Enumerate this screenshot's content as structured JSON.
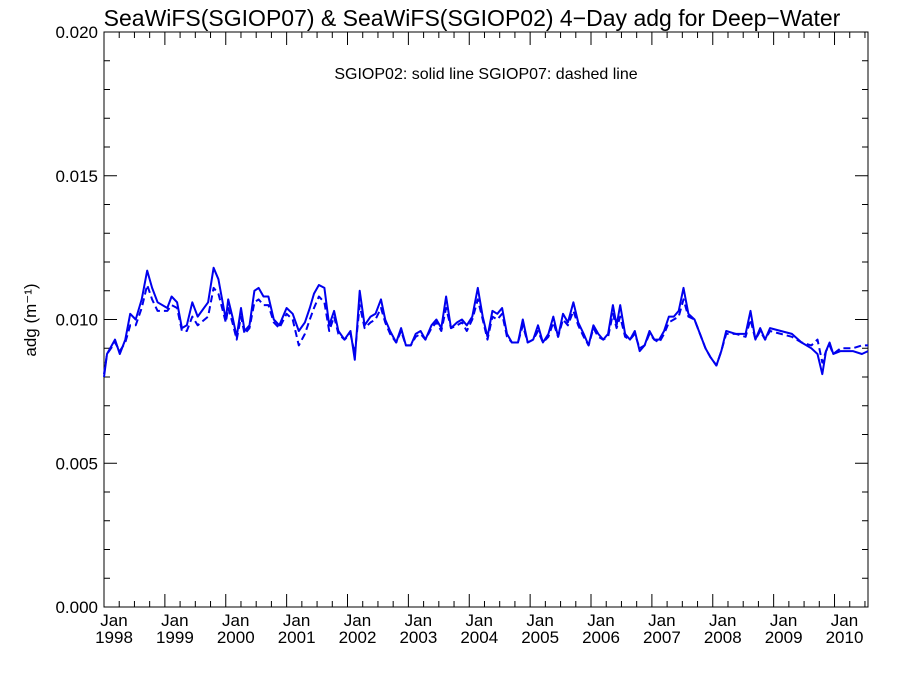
{
  "chart_data": {
    "type": "line",
    "title": "SeaWiFS(SGIOP07) & SeaWiFS(SGIOP02) 4−Day adg for Deep−Water",
    "annotation": "SGIOP02: solid line   SGIOP07: dashed line",
    "ylabel": "adg (m⁻¹)",
    "xlabel": "",
    "xlim": [
      1998.0,
      2010.55
    ],
    "ylim": [
      0.0,
      0.02
    ],
    "yticks": [
      0.0,
      0.005,
      0.01,
      0.015,
      0.02
    ],
    "ytick_labels": [
      "0.000",
      "0.005",
      "0.010",
      "0.015",
      "0.020"
    ],
    "xticks": [
      1998,
      1999,
      2000,
      2001,
      2002,
      2003,
      2004,
      2005,
      2006,
      2007,
      2008,
      2009,
      2010
    ],
    "xtick_month": "Jan",
    "xtick_years": [
      "1998",
      "1999",
      "2000",
      "2001",
      "2002",
      "2003",
      "2004",
      "2005",
      "2006",
      "2007",
      "2008",
      "2009",
      "2010"
    ],
    "grid": false,
    "line_color": "#0000ee",
    "series": [
      {
        "name": "SGIOP02",
        "style": "solid",
        "points": [
          [
            1998.0,
            0.008
          ],
          [
            1998.05,
            0.0088
          ],
          [
            1998.18,
            0.0093
          ],
          [
            1998.26,
            0.0088
          ],
          [
            1998.35,
            0.0093
          ],
          [
            1998.43,
            0.0102
          ],
          [
            1998.52,
            0.01
          ],
          [
            1998.62,
            0.0107
          ],
          [
            1998.71,
            0.0117
          ],
          [
            1998.79,
            0.0111
          ],
          [
            1998.88,
            0.0106
          ],
          [
            1999.04,
            0.0104
          ],
          [
            1999.11,
            0.0108
          ],
          [
            1999.2,
            0.0106
          ],
          [
            1999.28,
            0.0097
          ],
          [
            1999.36,
            0.0098
          ],
          [
            1999.45,
            0.0106
          ],
          [
            1999.54,
            0.0101
          ],
          [
            1999.71,
            0.0106
          ],
          [
            1999.8,
            0.0118
          ],
          [
            1999.88,
            0.0114
          ],
          [
            2000.0,
            0.01
          ],
          [
            2000.04,
            0.0107
          ],
          [
            2000.11,
            0.0101
          ],
          [
            2000.18,
            0.0094
          ],
          [
            2000.25,
            0.0104
          ],
          [
            2000.31,
            0.0096
          ],
          [
            2000.39,
            0.0098
          ],
          [
            2000.47,
            0.011
          ],
          [
            2000.54,
            0.0111
          ],
          [
            2000.62,
            0.0108
          ],
          [
            2000.7,
            0.0108
          ],
          [
            2000.79,
            0.01
          ],
          [
            2000.88,
            0.0098
          ],
          [
            2001.0,
            0.0104
          ],
          [
            2001.1,
            0.0102
          ],
          [
            2001.2,
            0.0096
          ],
          [
            2001.3,
            0.0099
          ],
          [
            2001.38,
            0.0104
          ],
          [
            2001.45,
            0.0109
          ],
          [
            2001.53,
            0.0112
          ],
          [
            2001.62,
            0.0111
          ],
          [
            2001.7,
            0.0098
          ],
          [
            2001.78,
            0.0103
          ],
          [
            2001.85,
            0.0096
          ],
          [
            2001.95,
            0.0093
          ],
          [
            2002.05,
            0.0096
          ],
          [
            2002.12,
            0.0086
          ],
          [
            2002.2,
            0.011
          ],
          [
            2002.28,
            0.0098
          ],
          [
            2002.38,
            0.0101
          ],
          [
            2002.46,
            0.0102
          ],
          [
            2002.55,
            0.0107
          ],
          [
            2002.62,
            0.01
          ],
          [
            2002.7,
            0.0096
          ],
          [
            2002.8,
            0.0092
          ],
          [
            2002.88,
            0.0097
          ],
          [
            2002.96,
            0.0091
          ],
          [
            2003.04,
            0.0091
          ],
          [
            2003.12,
            0.0095
          ],
          [
            2003.2,
            0.0096
          ],
          [
            2003.28,
            0.0093
          ],
          [
            2003.38,
            0.0098
          ],
          [
            2003.46,
            0.01
          ],
          [
            2003.54,
            0.0097
          ],
          [
            2003.62,
            0.0108
          ],
          [
            2003.7,
            0.0097
          ],
          [
            2003.8,
            0.0099
          ],
          [
            2003.88,
            0.01
          ],
          [
            2003.96,
            0.0098
          ],
          [
            2004.05,
            0.0101
          ],
          [
            2004.14,
            0.0111
          ],
          [
            2004.22,
            0.0101
          ],
          [
            2004.3,
            0.0094
          ],
          [
            2004.38,
            0.0103
          ],
          [
            2004.46,
            0.0102
          ],
          [
            2004.54,
            0.0104
          ],
          [
            2004.62,
            0.0095
          ],
          [
            2004.7,
            0.0092
          ],
          [
            2004.8,
            0.0092
          ],
          [
            2004.88,
            0.01
          ],
          [
            2004.96,
            0.0092
          ],
          [
            2005.05,
            0.0093
          ],
          [
            2005.13,
            0.0098
          ],
          [
            2005.21,
            0.0092
          ],
          [
            2005.3,
            0.0095
          ],
          [
            2005.38,
            0.0101
          ],
          [
            2005.46,
            0.0094
          ],
          [
            2005.54,
            0.0102
          ],
          [
            2005.62,
            0.0099
          ],
          [
            2005.71,
            0.0106
          ],
          [
            2005.79,
            0.0099
          ],
          [
            2005.88,
            0.0095
          ],
          [
            2005.96,
            0.0091
          ],
          [
            2006.04,
            0.0098
          ],
          [
            2006.12,
            0.0095
          ],
          [
            2006.2,
            0.0093
          ],
          [
            2006.28,
            0.0095
          ],
          [
            2006.36,
            0.0105
          ],
          [
            2006.42,
            0.0098
          ],
          [
            2006.48,
            0.0105
          ],
          [
            2006.56,
            0.0095
          ],
          [
            2006.64,
            0.0093
          ],
          [
            2006.72,
            0.0096
          ],
          [
            2006.8,
            0.0089
          ],
          [
            2006.88,
            0.0091
          ],
          [
            2006.96,
            0.0096
          ],
          [
            2007.04,
            0.0093
          ],
          [
            2007.12,
            0.0093
          ],
          [
            2007.2,
            0.0096
          ],
          [
            2007.28,
            0.0101
          ],
          [
            2007.36,
            0.0101
          ],
          [
            2007.44,
            0.0103
          ],
          [
            2007.52,
            0.0111
          ],
          [
            2007.6,
            0.0102
          ],
          [
            2007.7,
            0.01
          ],
          [
            2007.88,
            0.009
          ],
          [
            2007.96,
            0.0087
          ],
          [
            2008.06,
            0.0084
          ],
          [
            2008.14,
            0.0089
          ],
          [
            2008.22,
            0.0096
          ],
          [
            2008.38,
            0.0095
          ],
          [
            2008.54,
            0.0095
          ],
          [
            2008.62,
            0.0103
          ],
          [
            2008.7,
            0.0093
          ],
          [
            2008.78,
            0.0097
          ],
          [
            2008.86,
            0.0093
          ],
          [
            2008.94,
            0.0097
          ],
          [
            2009.12,
            0.0096
          ],
          [
            2009.3,
            0.0095
          ],
          [
            2009.46,
            0.0092
          ],
          [
            2009.62,
            0.009
          ],
          [
            2009.72,
            0.0088
          ],
          [
            2009.8,
            0.0081
          ],
          [
            2009.86,
            0.0089
          ],
          [
            2009.92,
            0.0092
          ],
          [
            2009.98,
            0.0088
          ],
          [
            2010.1,
            0.0089
          ],
          [
            2010.3,
            0.0089
          ],
          [
            2010.45,
            0.0088
          ],
          [
            2010.55,
            0.0089
          ]
        ]
      },
      {
        "name": "SGIOP07",
        "style": "dashed",
        "points": [
          [
            1998.0,
            0.0081
          ],
          [
            1998.05,
            0.0088
          ],
          [
            1998.18,
            0.0092
          ],
          [
            1998.26,
            0.0089
          ],
          [
            1998.35,
            0.0092
          ],
          [
            1998.43,
            0.0098
          ],
          [
            1998.52,
            0.0098
          ],
          [
            1998.62,
            0.0104
          ],
          [
            1998.71,
            0.0112
          ],
          [
            1998.79,
            0.0107
          ],
          [
            1998.88,
            0.0103
          ],
          [
            1999.04,
            0.0103
          ],
          [
            1999.11,
            0.0105
          ],
          [
            1999.2,
            0.0104
          ],
          [
            1999.28,
            0.0096
          ],
          [
            1999.36,
            0.0096
          ],
          [
            1999.45,
            0.0101
          ],
          [
            1999.54,
            0.0098
          ],
          [
            1999.71,
            0.0101
          ],
          [
            1999.8,
            0.0111
          ],
          [
            1999.88,
            0.0109
          ],
          [
            2000.0,
            0.0099
          ],
          [
            2000.04,
            0.0104
          ],
          [
            2000.11,
            0.0099
          ],
          [
            2000.18,
            0.0093
          ],
          [
            2000.25,
            0.0101
          ],
          [
            2000.31,
            0.0095
          ],
          [
            2000.39,
            0.0097
          ],
          [
            2000.47,
            0.0106
          ],
          [
            2000.54,
            0.0107
          ],
          [
            2000.62,
            0.0105
          ],
          [
            2000.7,
            0.0105
          ],
          [
            2000.79,
            0.0099
          ],
          [
            2000.88,
            0.0097
          ],
          [
            2001.0,
            0.0102
          ],
          [
            2001.1,
            0.01
          ],
          [
            2001.2,
            0.0091
          ],
          [
            2001.3,
            0.0095
          ],
          [
            2001.38,
            0.01
          ],
          [
            2001.45,
            0.0104
          ],
          [
            2001.53,
            0.0108
          ],
          [
            2001.62,
            0.0106
          ],
          [
            2001.7,
            0.0096
          ],
          [
            2001.78,
            0.0101
          ],
          [
            2001.85,
            0.0095
          ],
          [
            2001.95,
            0.0093
          ],
          [
            2002.05,
            0.0095
          ],
          [
            2002.12,
            0.0088
          ],
          [
            2002.2,
            0.0105
          ],
          [
            2002.28,
            0.0097
          ],
          [
            2002.38,
            0.0099
          ],
          [
            2002.46,
            0.01
          ],
          [
            2002.55,
            0.0104
          ],
          [
            2002.62,
            0.0099
          ],
          [
            2002.7,
            0.0095
          ],
          [
            2002.8,
            0.0092
          ],
          [
            2002.88,
            0.0096
          ],
          [
            2002.96,
            0.0091
          ],
          [
            2003.04,
            0.0091
          ],
          [
            2003.12,
            0.0094
          ],
          [
            2003.2,
            0.0095
          ],
          [
            2003.28,
            0.0093
          ],
          [
            2003.38,
            0.0097
          ],
          [
            2003.46,
            0.0099
          ],
          [
            2003.54,
            0.0096
          ],
          [
            2003.62,
            0.0104
          ],
          [
            2003.7,
            0.0097
          ],
          [
            2003.8,
            0.0098
          ],
          [
            2003.88,
            0.0099
          ],
          [
            2003.96,
            0.0096
          ],
          [
            2004.05,
            0.01
          ],
          [
            2004.14,
            0.0107
          ],
          [
            2004.22,
            0.01
          ],
          [
            2004.3,
            0.0093
          ],
          [
            2004.38,
            0.0101
          ],
          [
            2004.46,
            0.01
          ],
          [
            2004.54,
            0.0102
          ],
          [
            2004.62,
            0.0094
          ],
          [
            2004.7,
            0.0092
          ],
          [
            2004.8,
            0.0092
          ],
          [
            2004.88,
            0.0098
          ],
          [
            2004.96,
            0.0092
          ],
          [
            2005.05,
            0.0093
          ],
          [
            2005.13,
            0.0096
          ],
          [
            2005.21,
            0.0092
          ],
          [
            2005.3,
            0.0094
          ],
          [
            2005.38,
            0.0099
          ],
          [
            2005.46,
            0.0094
          ],
          [
            2005.54,
            0.01
          ],
          [
            2005.62,
            0.0098
          ],
          [
            2005.71,
            0.0103
          ],
          [
            2005.79,
            0.0098
          ],
          [
            2005.88,
            0.0094
          ],
          [
            2005.96,
            0.0091
          ],
          [
            2006.04,
            0.0097
          ],
          [
            2006.12,
            0.0094
          ],
          [
            2006.2,
            0.0093
          ],
          [
            2006.28,
            0.0094
          ],
          [
            2006.36,
            0.0102
          ],
          [
            2006.42,
            0.0097
          ],
          [
            2006.48,
            0.0101
          ],
          [
            2006.56,
            0.0094
          ],
          [
            2006.64,
            0.0093
          ],
          [
            2006.72,
            0.0095
          ],
          [
            2006.8,
            0.009
          ],
          [
            2006.88,
            0.0091
          ],
          [
            2006.96,
            0.0095
          ],
          [
            2007.04,
            0.0093
          ],
          [
            2007.12,
            0.0092
          ],
          [
            2007.2,
            0.0095
          ],
          [
            2007.28,
            0.0099
          ],
          [
            2007.36,
            0.01
          ],
          [
            2007.44,
            0.0101
          ],
          [
            2007.52,
            0.0107
          ],
          [
            2007.6,
            0.0101
          ],
          [
            2007.7,
            0.01
          ],
          [
            2007.88,
            0.009
          ],
          [
            2007.96,
            0.0087
          ],
          [
            2008.06,
            0.0084
          ],
          [
            2008.14,
            0.0089
          ],
          [
            2008.22,
            0.0095
          ],
          [
            2008.38,
            0.0095
          ],
          [
            2008.54,
            0.0094
          ],
          [
            2008.62,
            0.01
          ],
          [
            2008.7,
            0.0093
          ],
          [
            2008.78,
            0.0096
          ],
          [
            2008.86,
            0.0093
          ],
          [
            2008.94,
            0.0096
          ],
          [
            2009.12,
            0.0095
          ],
          [
            2009.3,
            0.0094
          ],
          [
            2009.46,
            0.0092
          ],
          [
            2009.62,
            0.0091
          ],
          [
            2009.72,
            0.0093
          ],
          [
            2009.8,
            0.0085
          ],
          [
            2009.86,
            0.0089
          ],
          [
            2009.92,
            0.0091
          ],
          [
            2009.98,
            0.0088
          ],
          [
            2010.1,
            0.009
          ],
          [
            2010.3,
            0.009
          ],
          [
            2010.45,
            0.0091
          ],
          [
            2010.55,
            0.0091
          ]
        ]
      }
    ]
  }
}
